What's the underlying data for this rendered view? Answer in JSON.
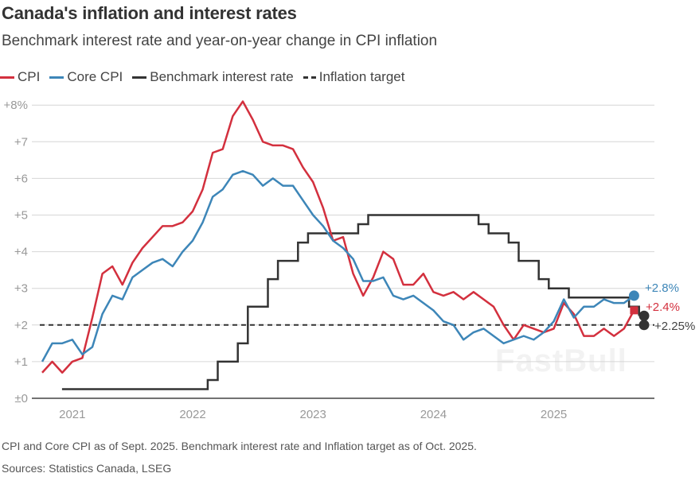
{
  "chart_data": {
    "type": "line",
    "title": "Canada's inflation and interest rates",
    "subtitle": "Benchmark interest rate and year-on-year change in CPI inflation",
    "ylim": [
      0,
      8
    ],
    "yticks": [
      {
        "value": 0,
        "label": "±0"
      },
      {
        "value": 1,
        "label": "+1"
      },
      {
        "value": 2,
        "label": "+2"
      },
      {
        "value": 3,
        "label": "+3"
      },
      {
        "value": 4,
        "label": "+4"
      },
      {
        "value": 5,
        "label": "+5"
      },
      {
        "value": 6,
        "label": "+6"
      },
      {
        "value": 7,
        "label": "+7"
      },
      {
        "value": 8,
        "label": "+8%"
      }
    ],
    "xticks": [
      "2021",
      "2022",
      "2023",
      "2024",
      "2025"
    ],
    "grid": true,
    "legend_placement": "top-left",
    "months": [
      "2020-10",
      "2020-11",
      "2020-12",
      "2021-01",
      "2021-02",
      "2021-03",
      "2021-04",
      "2021-05",
      "2021-06",
      "2021-07",
      "2021-08",
      "2021-09",
      "2021-10",
      "2021-11",
      "2021-12",
      "2022-01",
      "2022-02",
      "2022-03",
      "2022-04",
      "2022-05",
      "2022-06",
      "2022-07",
      "2022-08",
      "2022-09",
      "2022-10",
      "2022-11",
      "2022-12",
      "2023-01",
      "2023-02",
      "2023-03",
      "2023-04",
      "2023-05",
      "2023-06",
      "2023-07",
      "2023-08",
      "2023-09",
      "2023-10",
      "2023-11",
      "2023-12",
      "2024-01",
      "2024-02",
      "2024-03",
      "2024-04",
      "2024-05",
      "2024-06",
      "2024-07",
      "2024-08",
      "2024-09",
      "2024-10",
      "2024-11",
      "2024-12",
      "2025-01",
      "2025-02",
      "2025-03",
      "2025-04",
      "2025-05",
      "2025-06",
      "2025-07",
      "2025-08",
      "2025-09"
    ],
    "series": [
      {
        "name": "CPI",
        "color": "#d3303e",
        "values": [
          0.7,
          1.0,
          0.7,
          1.0,
          1.1,
          2.2,
          3.4,
          3.6,
          3.1,
          3.7,
          4.1,
          4.4,
          4.7,
          4.7,
          4.8,
          5.1,
          5.7,
          6.7,
          6.8,
          7.7,
          8.1,
          7.6,
          7.0,
          6.9,
          6.9,
          6.8,
          6.3,
          5.9,
          5.2,
          4.3,
          4.4,
          3.4,
          2.8,
          3.3,
          4.0,
          3.8,
          3.1,
          3.1,
          3.4,
          2.9,
          2.8,
          2.9,
          2.7,
          2.9,
          2.7,
          2.5,
          2.0,
          1.6,
          2.0,
          1.9,
          1.8,
          1.9,
          2.6,
          2.3,
          1.7,
          1.7,
          1.9,
          1.7,
          1.9,
          2.4
        ],
        "end_label": "+2.4%"
      },
      {
        "name": "Core CPI",
        "color": "#3d86b8",
        "values": [
          1.0,
          1.5,
          1.5,
          1.6,
          1.2,
          1.4,
          2.3,
          2.8,
          2.7,
          3.3,
          3.5,
          3.7,
          3.8,
          3.6,
          4.0,
          4.3,
          4.8,
          5.5,
          5.7,
          6.1,
          6.2,
          6.1,
          5.8,
          6.0,
          5.8,
          5.8,
          5.4,
          5.0,
          4.7,
          4.3,
          4.1,
          3.8,
          3.2,
          3.2,
          3.3,
          2.8,
          2.7,
          2.8,
          2.6,
          2.4,
          2.1,
          2.0,
          1.6,
          1.8,
          1.9,
          1.7,
          1.5,
          1.6,
          1.7,
          1.6,
          1.8,
          2.1,
          2.7,
          2.2,
          2.5,
          2.5,
          2.7,
          2.6,
          2.6,
          2.8
        ],
        "end_label": "+2.8%"
      },
      {
        "name": "Benchmark interest rate",
        "color": "#333333",
        "step": true,
        "steps": [
          [
            "2020-12",
            0.25
          ],
          [
            "2022-03",
            0.5
          ],
          [
            "2022-04",
            1.0
          ],
          [
            "2022-06",
            1.5
          ],
          [
            "2022-07",
            2.5
          ],
          [
            "2022-09",
            3.25
          ],
          [
            "2022-10",
            3.75
          ],
          [
            "2022-12",
            4.25
          ],
          [
            "2023-01",
            4.5
          ],
          [
            "2023-06",
            4.75
          ],
          [
            "2023-07",
            5.0
          ],
          [
            "2024-06",
            4.75
          ],
          [
            "2024-07",
            4.5
          ],
          [
            "2024-09",
            4.25
          ],
          [
            "2024-10",
            3.75
          ],
          [
            "2024-12",
            3.25
          ],
          [
            "2025-01",
            3.0
          ],
          [
            "2025-03",
            2.75
          ],
          [
            "2025-09",
            2.5
          ],
          [
            "2025-10",
            2.25
          ]
        ],
        "end_label": "+2.25%"
      },
      {
        "name": "Inflation target",
        "color": "#333333",
        "dashed": true,
        "value": 2.0
      }
    ]
  },
  "footer": {
    "note": "CPI and Core CPI as of Sept. 2025. Benchmark interest rate and Inflation target as of Oct. 2025.",
    "sources": "Sources: Statistics Canada, LSEG"
  },
  "watermark": "FastBull"
}
